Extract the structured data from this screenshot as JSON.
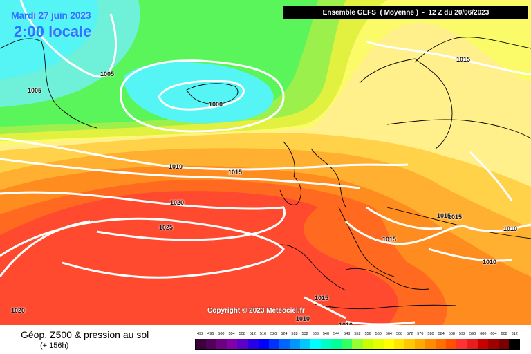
{
  "header": {
    "date": "Mardi 27 juin 2023",
    "local_time": "2:00 locale",
    "run_info": "Ensemble GEFS  ( Moyenne )  -  12 Z du 20/06/2023"
  },
  "map": {
    "copyright": "Copyright © 2023 Meteociel.fr",
    "isobar_labels": [
      "1005",
      "1005",
      "1000",
      "1015",
      "1010",
      "1015",
      "1020",
      "1025",
      "1020",
      "1015",
      "1015",
      "1010",
      "1015",
      "1010",
      "1015",
      "1010",
      "1010"
    ]
  },
  "footer": {
    "title": "Géop. Z500 & pression au sol",
    "subtitle": "(+ 156h)"
  },
  "scale": {
    "values": [
      "492",
      "496",
      "500",
      "504",
      "508",
      "512",
      "516",
      "520",
      "524",
      "528",
      "532",
      "536",
      "540",
      "544",
      "548",
      "552",
      "556",
      "560",
      "564",
      "568",
      "572",
      "576",
      "580",
      "584",
      "588",
      "592",
      "596",
      "600",
      "604",
      "608",
      "612"
    ],
    "colors": [
      "#3c003c",
      "#55005f",
      "#6e0082",
      "#8200aa",
      "#5a00c8",
      "#2800e6",
      "#0000ff",
      "#0032ff",
      "#0064ff",
      "#0096ff",
      "#00c8ff",
      "#00ffff",
      "#00ffc8",
      "#00ff96",
      "#32ff64",
      "#96ff32",
      "#c8ff00",
      "#e6ff00",
      "#ffff00",
      "#ffe600",
      "#ffc800",
      "#ffaa00",
      "#ff8c00",
      "#ff6e00",
      "#ff5000",
      "#ff3232",
      "#e61e1e",
      "#c80000",
      "#a00000",
      "#780000",
      "#000000"
    ],
    "map_colors": {
      "z552": "#5af55a",
      "z556": "#9bf04b",
      "z560": "#e2f040",
      "z564": "#fbfb6a",
      "z568": "#fff08c",
      "z572": "#ffd24a",
      "z576": "#ffb030",
      "z580": "#ff8c1e",
      "z584": "#ff6a20",
      "z588": "#ff4a30",
      "z_cyan": "#55f5f5",
      "z_aqua": "#6ff0d8"
    }
  }
}
